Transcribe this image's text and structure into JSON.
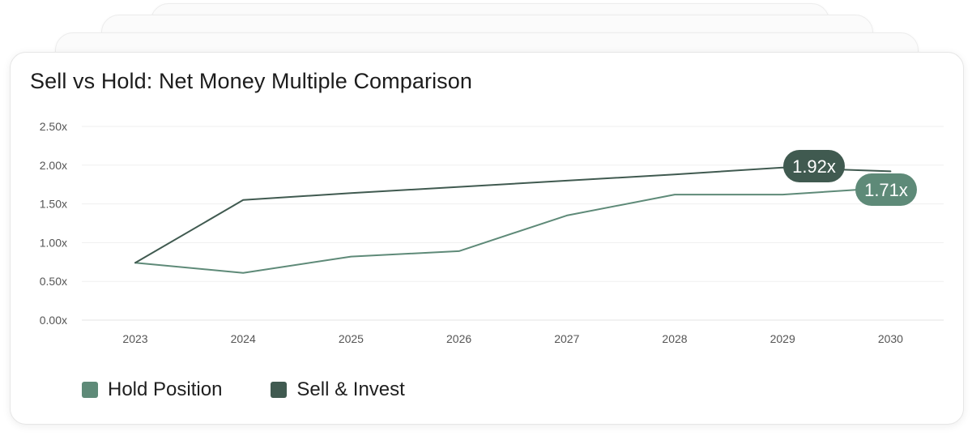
{
  "chart_data": {
    "type": "line",
    "title": "Sell vs Hold: Net Money Multiple Comparison",
    "xlabel": "",
    "ylabel": "",
    "x": [
      "2023",
      "2024",
      "2025",
      "2026",
      "2027",
      "2028",
      "2029",
      "2030"
    ],
    "ylim": [
      0,
      2.5
    ],
    "yticks": [
      "0.00x",
      "0.50x",
      "1.00x",
      "1.50x",
      "2.00x",
      "2.50x"
    ],
    "ytick_values": [
      0,
      0.5,
      1.0,
      1.5,
      2.0,
      2.5
    ],
    "grid": true,
    "legend_position": "bottom-left",
    "series": [
      {
        "name": "Hold Position",
        "color": "#5e8a78",
        "values": [
          0.74,
          0.61,
          0.82,
          0.89,
          1.35,
          1.62,
          1.62,
          1.71
        ],
        "end_label": "1.71x"
      },
      {
        "name": "Sell & Invest",
        "color": "#405a50",
        "values": [
          0.74,
          1.55,
          1.64,
          1.72,
          1.8,
          1.88,
          1.97,
          1.92
        ],
        "end_label": "1.92x"
      }
    ]
  }
}
